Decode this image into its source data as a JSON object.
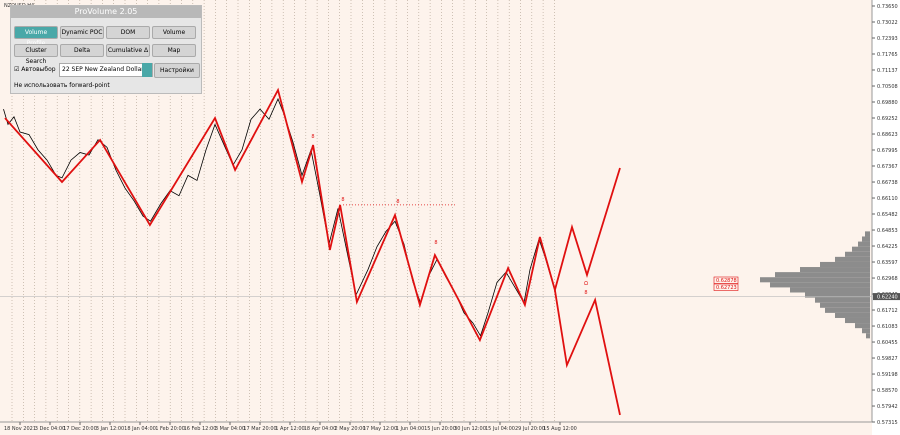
{
  "symbol": "NZDUSD,H4",
  "panel": {
    "title": "ProVolume 2.05",
    "buttons": [
      "Volume Profile",
      "Dynamic POC",
      "DOM",
      "Volume",
      "Cluster Search",
      "Delta",
      "Cumulative Δ",
      "Map"
    ],
    "auto_select": "Автовыбор",
    "contract": "22 SEP New Zealand Dollar",
    "settings": "Настройки",
    "forward_point": "Не использовать forward-point"
  },
  "chart_data": {
    "type": "line",
    "categories": [
      "18 Nov 2021",
      "3 Dec 04:00",
      "17 Dec 20:00",
      "3 Jan 12:00",
      "18 Jan 04:00",
      "1 Feb 20:00",
      "16 Feb 12:00",
      "3 Mar 04:00",
      "17 Mar 20:00",
      "1 Apr 12:00",
      "18 Apr 04:00",
      "2 May 20:00",
      "17 May 12:00",
      "1 Jun 04:00",
      "15 Jun 20:00",
      "30 Jun 12:00",
      "15 Jul 04:00",
      "29 Jul 20:00",
      "15 Aug 12:00"
    ],
    "ylim": [
      0.57315,
      0.7365
    ],
    "yticks": [
      {
        "value": 0.7365,
        "label": "0.73650"
      },
      {
        "value": 0.73022,
        "label": "0.73022"
      },
      {
        "value": 0.72393,
        "label": "0.72393"
      },
      {
        "value": 0.71765,
        "label": "0.71765"
      },
      {
        "value": 0.71137,
        "label": "0.71137"
      },
      {
        "value": 0.70508,
        "label": "0.70508"
      },
      {
        "value": 0.6988,
        "label": "0.69880"
      },
      {
        "value": 0.69252,
        "label": "0.69252"
      },
      {
        "value": 0.68623,
        "label": "0.68623"
      },
      {
        "value": 0.67995,
        "label": "0.67995"
      },
      {
        "value": 0.67367,
        "label": "0.67367"
      },
      {
        "value": 0.66738,
        "label": "0.66738"
      },
      {
        "value": 0.6611,
        "label": "0.66110"
      },
      {
        "value": 0.65482,
        "label": "0.65482"
      },
      {
        "value": 0.64853,
        "label": "0.64853"
      },
      {
        "value": 0.64225,
        "label": "0.64225"
      },
      {
        "value": 0.63597,
        "label": "0.63597"
      },
      {
        "value": 0.62968,
        "label": "0.62968"
      },
      {
        "value": 0.6234,
        "label": "0.62340"
      },
      {
        "value": 0.61712,
        "label": "0.61712"
      },
      {
        "value": 0.61083,
        "label": "0.61083"
      },
      {
        "value": 0.60455,
        "label": "0.60455"
      },
      {
        "value": 0.59827,
        "label": "0.59827"
      },
      {
        "value": 0.59198,
        "label": "0.59198"
      },
      {
        "value": 0.5857,
        "label": "0.58570"
      },
      {
        "value": 0.57942,
        "label": "0.57942"
      },
      {
        "value": 0.57315,
        "label": "0.57315"
      }
    ],
    "series": [
      {
        "color": "#000000",
        "x": [
          -0.55,
          -0.4,
          -0.2,
          0,
          0.3,
          0.6,
          0.9,
          1.2,
          1.4,
          1.7,
          2.0,
          2.3,
          2.6,
          2.9,
          3.2,
          3.5,
          3.8,
          4.1,
          4.35,
          4.7,
          5.0,
          5.3,
          5.6,
          5.9,
          6.2,
          6.5,
          6.8,
          7.1,
          7.4,
          7.7,
          8.0,
          8.3,
          8.6,
          8.8,
          9.1,
          9.4,
          9.7,
          10.0,
          10.3,
          10.6,
          10.9,
          11.2,
          11.6,
          11.9,
          12.2,
          12.5,
          12.8,
          13.1,
          13.35,
          13.6,
          13.9,
          14.2,
          14.5,
          14.8,
          15.1,
          15.35,
          15.6,
          15.9,
          16.2,
          16.5,
          16.8,
          17.0,
          17.3,
          17.5,
          17.8
        ],
        "values": [
          0.696,
          0.69,
          0.693,
          0.687,
          0.686,
          0.68,
          0.676,
          0.67,
          0.669,
          0.676,
          0.679,
          0.678,
          0.684,
          0.681,
          0.672,
          0.665,
          0.66,
          0.654,
          0.652,
          0.659,
          0.664,
          0.662,
          0.67,
          0.668,
          0.68,
          0.69,
          0.682,
          0.674,
          0.68,
          0.692,
          0.696,
          0.692,
          0.7,
          0.694,
          0.683,
          0.67,
          0.68,
          0.662,
          0.643,
          0.657,
          0.64,
          0.623,
          0.633,
          0.642,
          0.648,
          0.652,
          0.643,
          0.628,
          0.62,
          0.63,
          0.637,
          0.63,
          0.624,
          0.616,
          0.612,
          0.607,
          0.616,
          0.628,
          0.632,
          0.626,
          0.62,
          0.633,
          0.645,
          0.638,
          0.626
        ]
      },
      {
        "color": "#e01010",
        "x": [
          -0.5,
          1.4,
          2.67,
          4.33,
          6.5,
          7.17,
          8.6,
          9.4,
          9.77,
          10.33,
          10.67,
          11.23,
          12.5,
          13.33,
          13.83,
          15.33,
          16.27,
          16.83,
          17.33,
          17.83,
          18.4,
          18.9,
          20
        ],
        "values": [
          0.6925,
          0.6674,
          0.6839,
          0.6505,
          0.6925,
          0.6721,
          0.7035,
          0.6674,
          0.6819,
          0.6407,
          0.6584,
          0.6203,
          0.6544,
          0.6191,
          0.6387,
          0.6053,
          0.6336,
          0.6191,
          0.6458,
          0.625,
          0.6497,
          0.6309,
          0.6729
        ]
      },
      {
        "color": "#e01010",
        "x": [
          17.83,
          18.23,
          19.17,
          20
        ],
        "values": [
          0.625,
          0.5955,
          0.6211,
          0.5759
        ]
      }
    ],
    "annotations": [
      "8",
      "8",
      "8",
      "8",
      "Ω",
      "8"
    ],
    "level": 0.6584,
    "price_boxes": [
      "0.62878",
      "0.62723"
    ],
    "current_price": {
      "value": 0.6224,
      "label": "0.62240"
    },
    "volume_profile": {
      "prices": [
        0.647,
        0.645,
        0.643,
        0.641,
        0.639,
        0.637,
        0.635,
        0.633,
        0.631,
        0.629,
        0.627,
        0.625,
        0.623,
        0.621,
        0.619,
        0.617,
        0.615,
        0.613,
        0.611,
        0.609,
        0.607
      ],
      "values": [
        5,
        8,
        12,
        18,
        25,
        35,
        50,
        70,
        95,
        110,
        100,
        80,
        65,
        55,
        50,
        45,
        35,
        25,
        15,
        8,
        4
      ],
      "color": "#8c8c8c"
    }
  }
}
